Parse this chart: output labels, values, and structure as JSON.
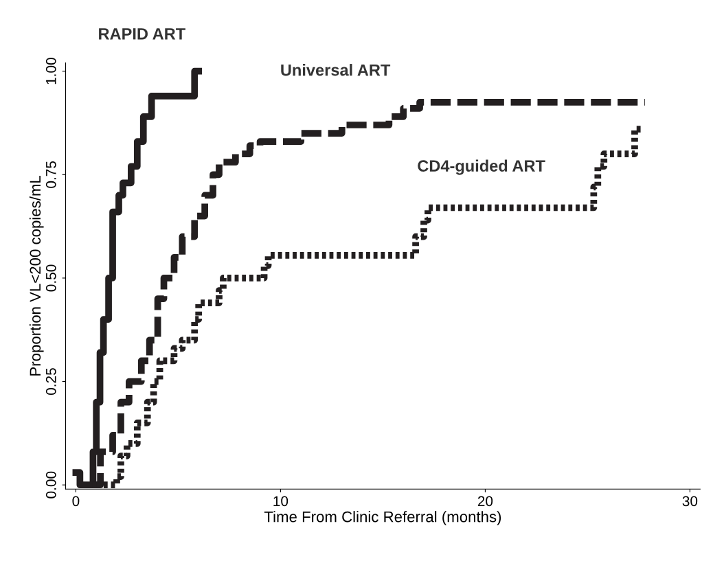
{
  "chart_data": {
    "type": "step",
    "xlabel": "Time From Clinic Referral (months)",
    "ylabel": "Proportion VL<200 copies/mL",
    "xlim": [
      -0.5,
      30.5
    ],
    "ylim": [
      -0.01,
      1.02
    ],
    "xticks": [
      0,
      10,
      20,
      30
    ],
    "yticks": [
      {
        "value": 0,
        "label": "0.00"
      },
      {
        "value": 0.25,
        "label": "0.25"
      },
      {
        "value": 0.5,
        "label": "0.50"
      },
      {
        "value": 0.75,
        "label": "0.75"
      },
      {
        "value": 1,
        "label": "1.00"
      }
    ],
    "grid": false,
    "legend": false,
    "series": [
      {
        "color": "#231f20",
        "line_style": "solid",
        "x": [
          0,
          0.2,
          0.84,
          1.0,
          1.18,
          1.35,
          1.6,
          1.8,
          2.1,
          2.3,
          2.7,
          3.0,
          3.3,
          3.7,
          5.8,
          6.0
        ],
        "values": [
          0.03,
          0,
          0.08,
          0.2,
          0.32,
          0.4,
          0.5,
          0.66,
          0.7,
          0.73,
          0.77,
          0.83,
          0.89,
          0.94,
          1.0,
          1.0
        ]
      },
      {
        "color": "#231f20",
        "line_style": "dashed",
        "x": [
          0.8,
          1.2,
          1.8,
          2.2,
          2.6,
          3.2,
          3.6,
          4.0,
          4.3,
          4.8,
          5.2,
          5.8,
          6.3,
          6.7,
          7.0,
          7.8,
          8.5,
          9.0,
          11.0,
          13.0,
          15.3,
          16.0,
          16.8,
          27.8
        ],
        "values": [
          0,
          0.08,
          0.12,
          0.2,
          0.25,
          0.3,
          0.35,
          0.45,
          0.5,
          0.55,
          0.6,
          0.65,
          0.7,
          0.75,
          0.78,
          0.8,
          0.82,
          0.83,
          0.85,
          0.87,
          0.89,
          0.91,
          0.925,
          0.925
        ]
      },
      {
        "color": "#231f20",
        "line_style": "dotted",
        "x": [
          1.0,
          2.0,
          2.2,
          2.5,
          3.0,
          3.5,
          3.8,
          4.1,
          4.8,
          5.2,
          5.8,
          6.0,
          7.0,
          7.2,
          9.2,
          9.4,
          16.6,
          17.0,
          17.2,
          25.3,
          25.5,
          25.8,
          27.3,
          27.6
        ],
        "values": [
          0,
          0.02,
          0.07,
          0.1,
          0.15,
          0.2,
          0.25,
          0.3,
          0.33,
          0.35,
          0.4,
          0.44,
          0.47,
          0.5,
          0.53,
          0.555,
          0.6,
          0.64,
          0.67,
          0.72,
          0.77,
          0.8,
          0.86,
          0.86
        ]
      }
    ],
    "annotations": [
      "RAPID ART",
      "Universal ART",
      "CD4-guided ART"
    ]
  }
}
